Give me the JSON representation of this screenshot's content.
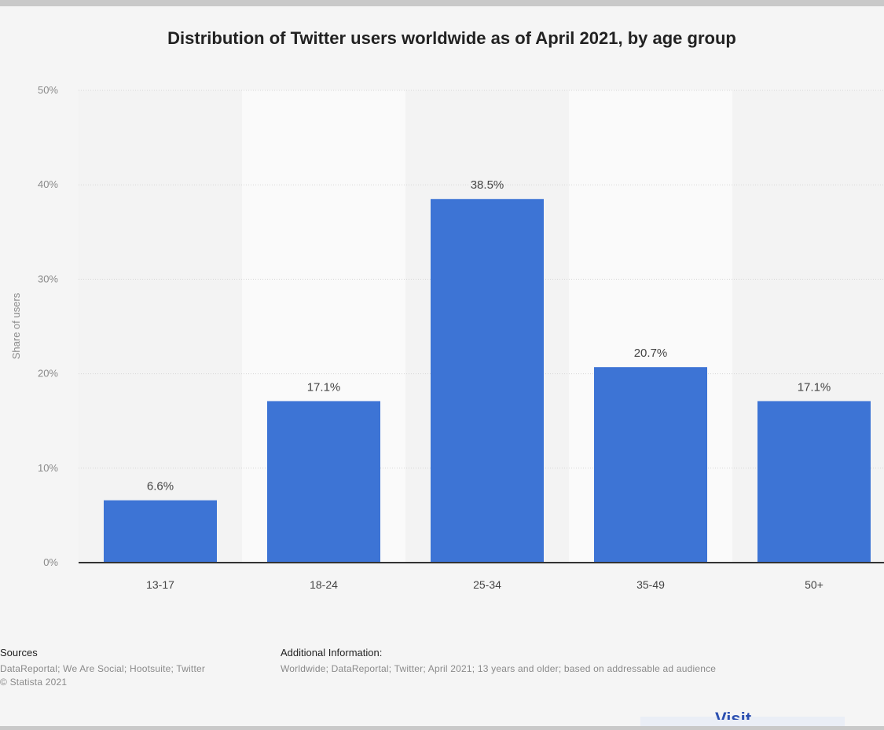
{
  "chart_data": {
    "type": "bar",
    "title": "Distribution of Twitter users worldwide as of April 2021, by age group",
    "xlabel": "",
    "ylabel": "Share of users",
    "categories": [
      "13-17",
      "18-24",
      "25-34",
      "35-49",
      "50+"
    ],
    "values": [
      6.6,
      17.1,
      38.5,
      20.7,
      17.1
    ],
    "data_labels": [
      "6.6%",
      "17.1%",
      "38.5%",
      "20.7%",
      "17.1%"
    ],
    "ylim": [
      0,
      50
    ],
    "yticks": [
      0,
      10,
      20,
      30,
      40,
      50
    ],
    "ytick_labels": [
      "0%",
      "10%",
      "20%",
      "30%",
      "40%",
      "50%"
    ],
    "grid": true,
    "bar_color": "#3d74d5"
  },
  "footer": {
    "sources_heading": "Sources",
    "sources_line1": "DataReportal; We Are Social; Hootsuite; Twitter",
    "sources_line2": "© Statista 2021",
    "additional_heading": "Additional Information:",
    "additional_text": "Worldwide; DataReportal; Twitter; April 2021; 13 years and older; based on addressable ad audience"
  },
  "visit_fragment": "Visit"
}
